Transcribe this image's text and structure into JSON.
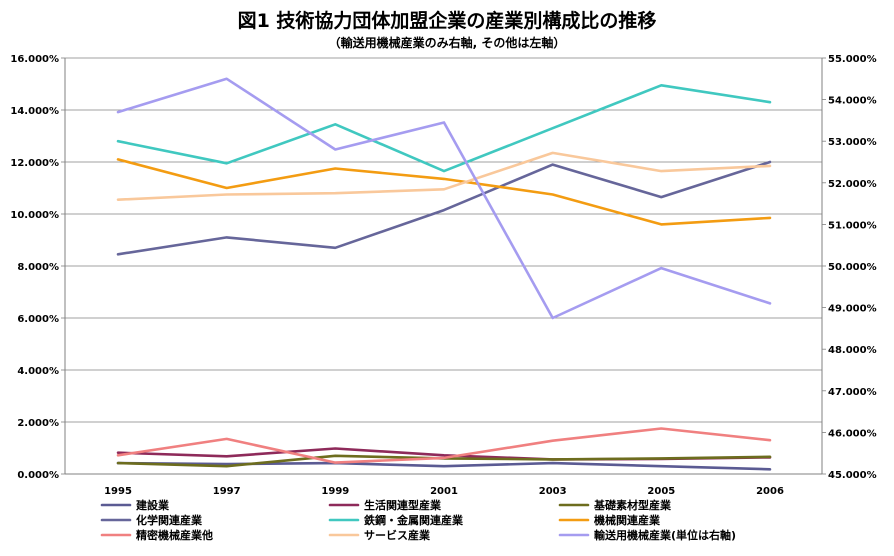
{
  "chart_data": {
    "type": "line",
    "title": "図1 技術協力団体加盟企業の産業別構成比の推移",
    "subtitle": "（輸送用機械産業のみ右軸, その他は左軸）",
    "xlabel": "",
    "ylabel": "",
    "x": [
      "1995",
      "1997",
      "1999",
      "2001",
      "2003",
      "2005",
      "2006"
    ],
    "ylim_left": [
      0,
      16
    ],
    "yticks_left": [
      "0.000%",
      "2.000%",
      "4.000%",
      "6.000%",
      "8.000%",
      "10.000%",
      "12.000%",
      "14.000%",
      "16.000%"
    ],
    "ylim_right": [
      45,
      55
    ],
    "yticks_right": [
      "45.000%",
      "46.000%",
      "47.000%",
      "48.000%",
      "49.000%",
      "50.000%",
      "51.000%",
      "52.000%",
      "53.000%",
      "54.000%",
      "55.000%"
    ],
    "grid": "horizontal",
    "legend_position": "bottom",
    "series": [
      {
        "name": "建設業",
        "color": "#5b5b93",
        "axis": "left",
        "values": [
          0.42,
          0.38,
          0.42,
          0.3,
          0.42,
          0.3,
          0.18
        ]
      },
      {
        "name": "生活関連型産業",
        "color": "#8e2a5a",
        "axis": "left",
        "values": [
          0.82,
          0.68,
          0.98,
          0.72,
          0.56,
          0.58,
          0.64
        ]
      },
      {
        "name": "基礎素材型産業",
        "color": "#6d6d1e",
        "axis": "left",
        "values": [
          0.42,
          0.3,
          0.7,
          0.6,
          0.56,
          0.6,
          0.66
        ]
      },
      {
        "name": "化学関連産業",
        "color": "#66669a",
        "axis": "left",
        "values": [
          8.45,
          9.1,
          8.7,
          10.15,
          11.9,
          10.65,
          12.0
        ]
      },
      {
        "name": "鉄鋼・金属関連産業",
        "color": "#40c8c0",
        "axis": "left",
        "values": [
          12.8,
          11.95,
          13.45,
          11.65,
          13.3,
          14.95,
          14.3
        ]
      },
      {
        "name": "機械関連産業",
        "color": "#f39c12",
        "axis": "left",
        "values": [
          12.1,
          11.0,
          11.75,
          11.35,
          10.75,
          9.6,
          9.85
        ]
      },
      {
        "name": "精密機械産業他",
        "color": "#f08080",
        "axis": "left",
        "values": [
          0.72,
          1.35,
          0.44,
          0.62,
          1.28,
          1.75,
          1.3
        ]
      },
      {
        "name": "サービス産業",
        "color": "#f9c89b",
        "axis": "left",
        "values": [
          10.55,
          10.75,
          10.8,
          10.95,
          12.35,
          11.65,
          11.85
        ]
      },
      {
        "name": "輸送用機械産業(単位は右軸)",
        "color": "#a59cf0",
        "axis": "right",
        "values": [
          53.7,
          54.5,
          52.8,
          53.45,
          48.75,
          49.95,
          49.1
        ]
      }
    ]
  }
}
